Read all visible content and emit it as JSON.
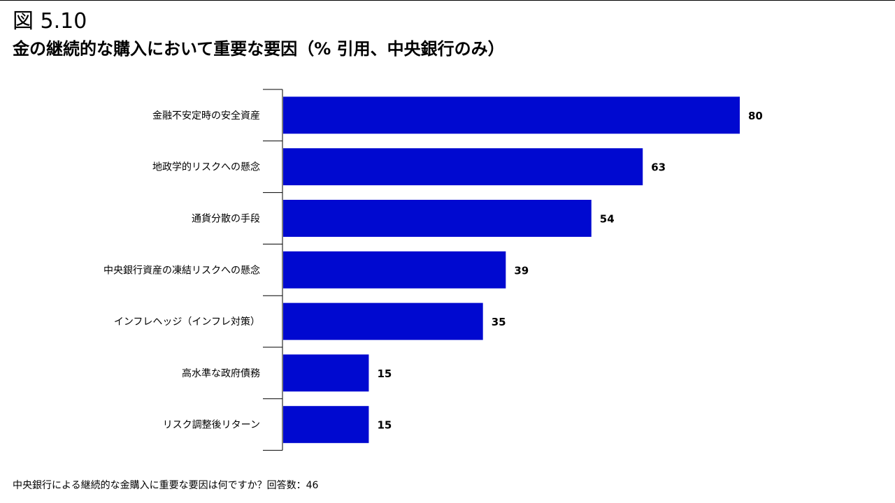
{
  "figure": {
    "number": "図 5.10",
    "title": "金の継続的な購入において重要な要因（% 引用、中央銀行のみ）",
    "footnote": "中央銀行による継続的な金購入に重要な要因は何ですか？回答数：46"
  },
  "chart_data": {
    "type": "bar",
    "orientation": "horizontal",
    "title": "金の継続的な購入において重要な要因（% 引用、中央銀行のみ）",
    "categories": [
      "金融不安定時の安全資産",
      "地政学的リスクへの懸念",
      "通貨分散の手段",
      "中央銀行資産の凍結リスクへの懸念",
      "インフレヘッジ（インフレ対策）",
      "高水準な政府債務",
      "リスク調整後リターン"
    ],
    "values": [
      80,
      63,
      54,
      39,
      35,
      15,
      15
    ],
    "value_labels": [
      "80",
      "63",
      "54",
      "39",
      "35",
      "15",
      "15"
    ],
    "xlim": [
      0,
      80
    ],
    "bar_color": "#0009D0",
    "grid": false,
    "legend": "none"
  }
}
